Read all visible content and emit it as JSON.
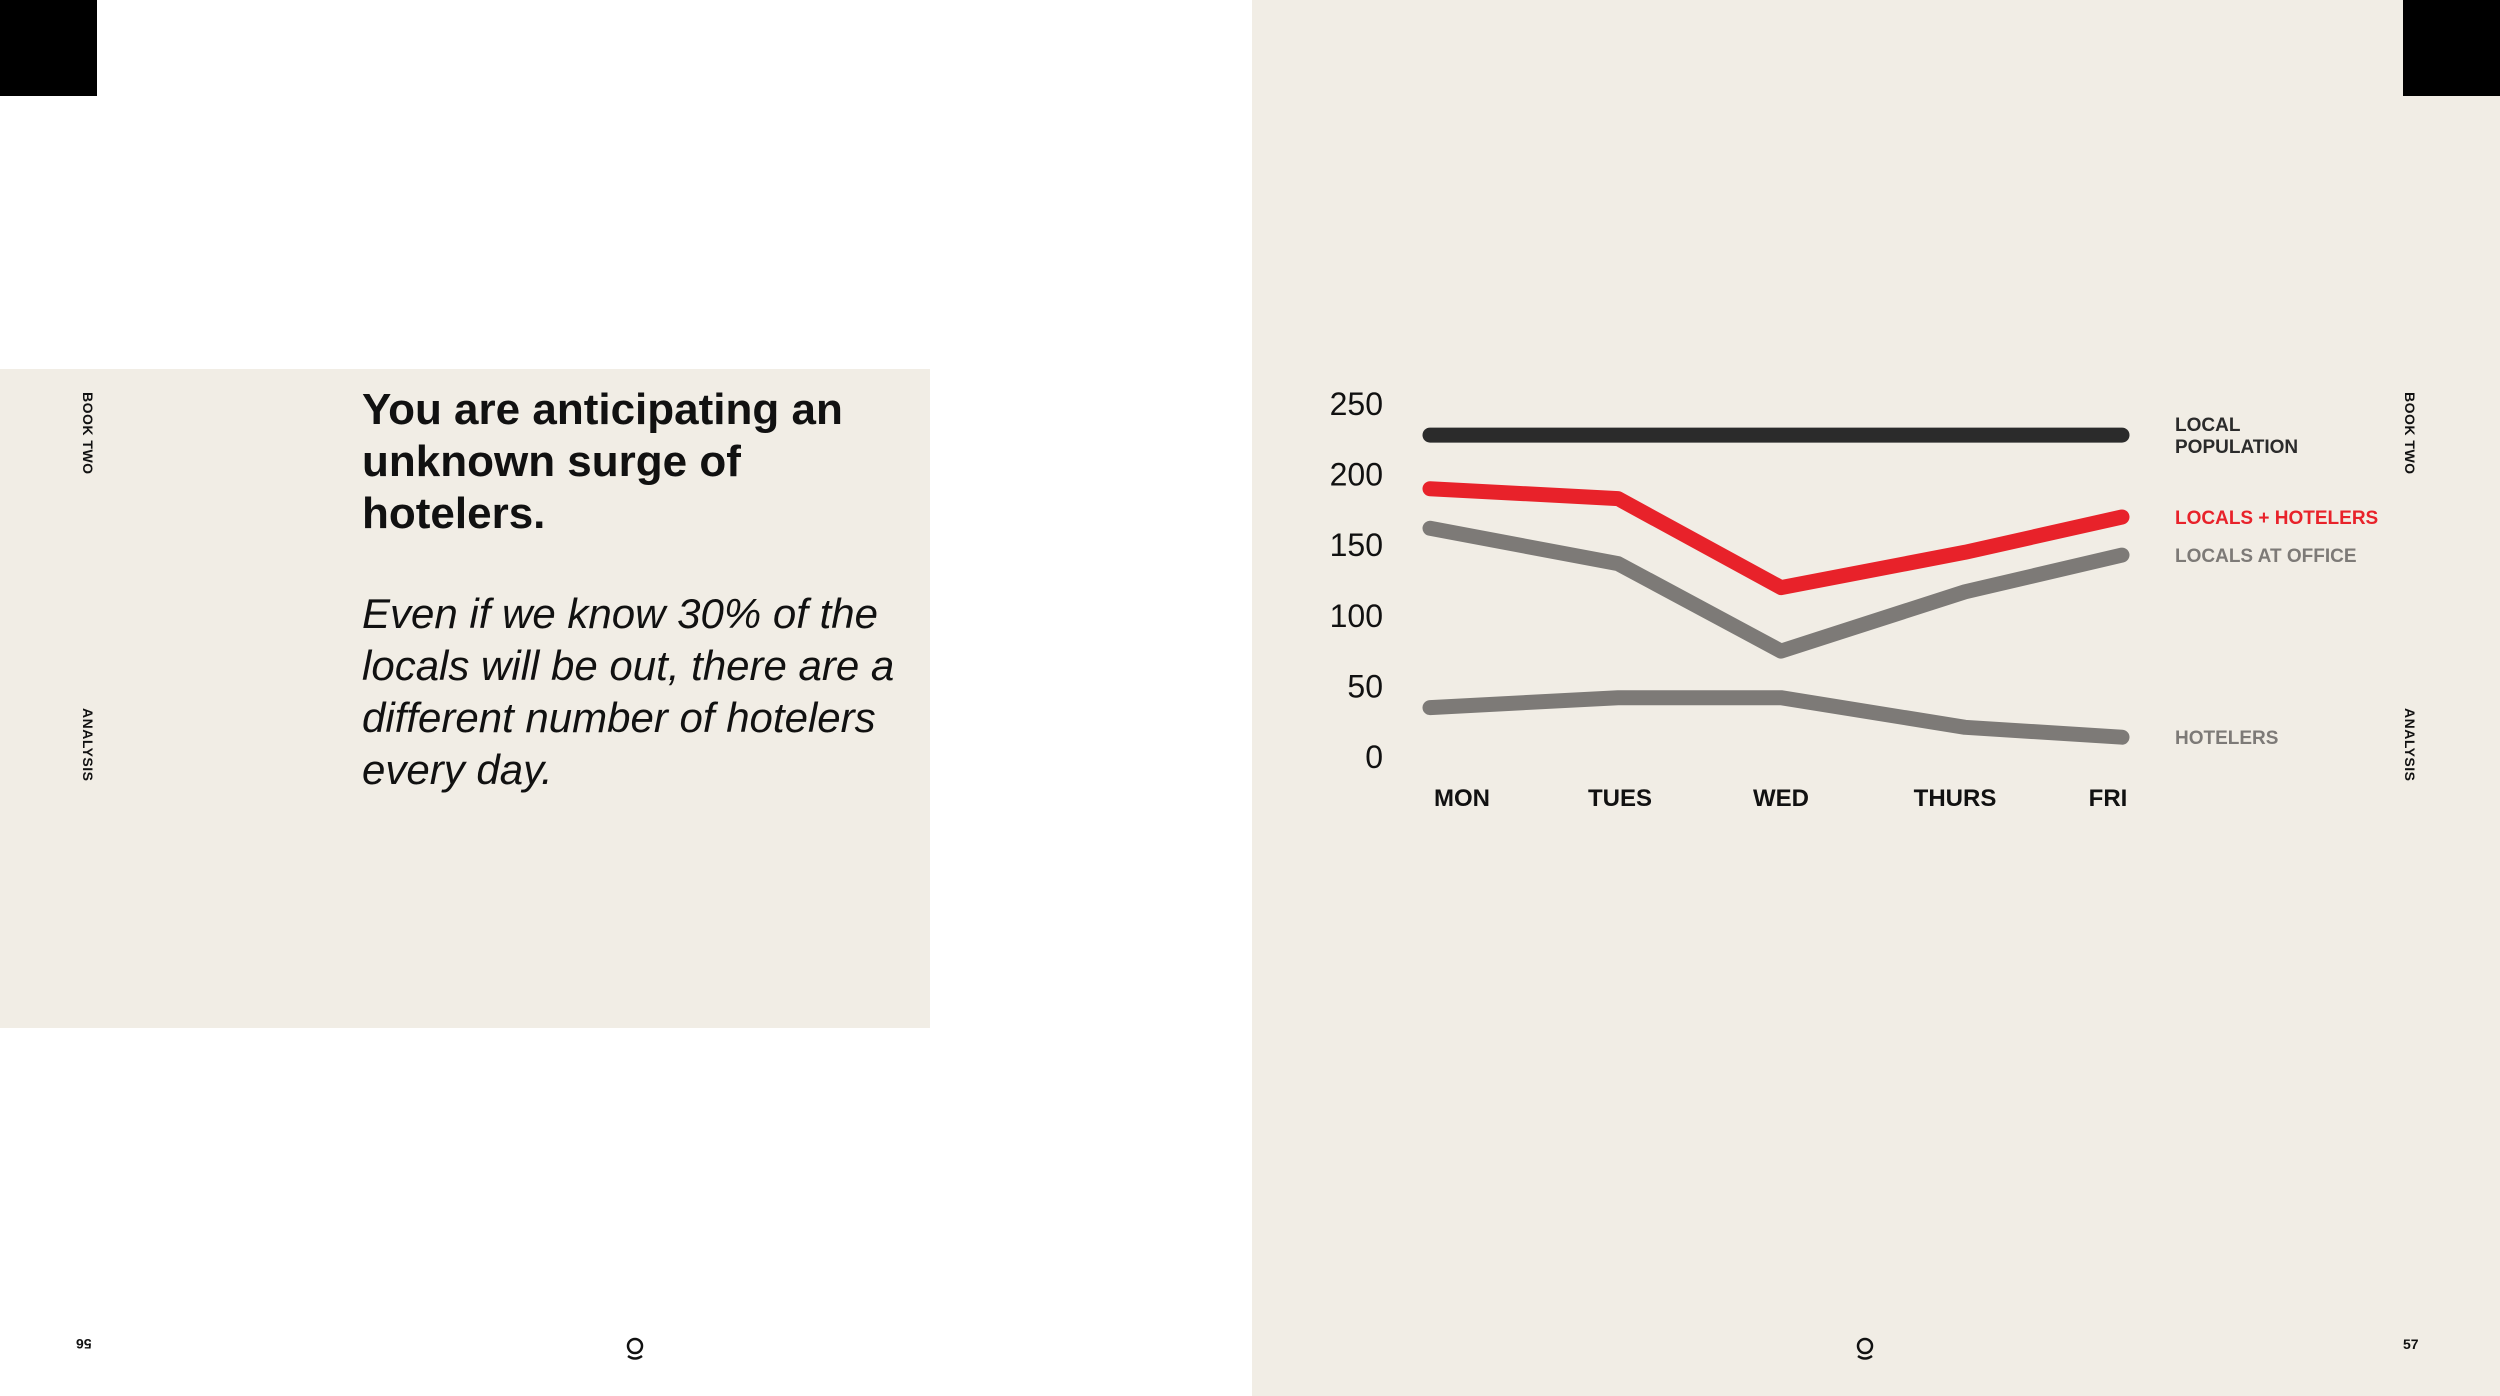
{
  "headline": "You are anticipating an unknown surge of hotelers.",
  "subtext": "Even if we know 30% of the locals will be out, there are a different number of hotelers every day.",
  "side_labels": {
    "book": "BOOK TWO",
    "section": "ANALYSIS"
  },
  "page_numbers": {
    "left": "56",
    "right": "57"
  },
  "colors": {
    "accent": "#e8222a",
    "dark": "#2b2b2b",
    "grey": "#7d7a77",
    "panel": "#f1ede5"
  },
  "icons": {
    "logo": "logo-mark-icon"
  },
  "chart_data": {
    "type": "line",
    "categories": [
      "MON",
      "TUES",
      "WED",
      "THURS",
      "FRI"
    ],
    "yticks": [
      0,
      50,
      100,
      150,
      200,
      250
    ],
    "ylim": [
      0,
      250
    ],
    "series": [
      {
        "name": "LOCAL POPULATION",
        "label_lines": [
          "LOCAL",
          "POPULATION"
        ],
        "color": "#2b2b2b",
        "values": [
          228,
          228,
          228,
          228,
          228
        ]
      },
      {
        "name": "LOCALS + HOTELERS",
        "label_lines": [
          "LOCALS + HOTELERS"
        ],
        "color": "#e8222a",
        "values": [
          190,
          183,
          120,
          145,
          170
        ]
      },
      {
        "name": "LOCALS AT OFFICE",
        "label_lines": [
          "LOCALS AT OFFICE"
        ],
        "color": "#7d7a77",
        "values": [
          162,
          137,
          75,
          117,
          143
        ]
      },
      {
        "name": "HOTELERS",
        "label_lines": [
          "HOTELERS"
        ],
        "color": "#7d7a77",
        "values": [
          35,
          42,
          42,
          21,
          14
        ]
      }
    ],
    "title": "",
    "xlabel": "",
    "ylabel": "",
    "grid": false,
    "legend": "right"
  }
}
